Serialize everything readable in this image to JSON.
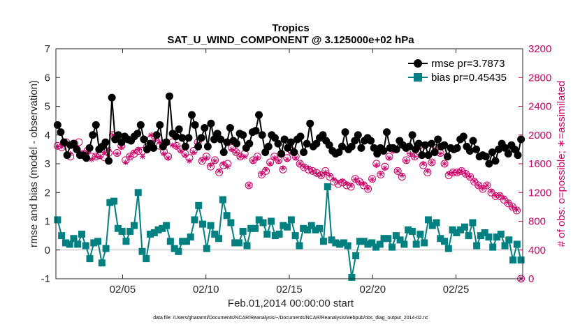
{
  "chart_data": {
    "type": "line",
    "title": "Tropics",
    "subtitle": "SAT_U_WIND_COMPONENT @ 3.125000e+02 hPa",
    "xlabel": "Feb.01,2014 00:00:00 start",
    "ylabel": "rmse and bias (model - observation)",
    "ylabel_right": "# of obs: o=possible; ∗=assimilated",
    "footnote": "data file: /Users/gharamti/Documents/NCAR/Reanalysis/~/Documents/NCAR/Reanalysis/webpub/obs_diag_output_2014-02.nc",
    "xlim": [
      1,
      29
    ],
    "ylim": [
      -1,
      7
    ],
    "ylim_right": [
      0,
      3200
    ],
    "x_ticks": [
      5,
      10,
      15,
      20,
      25
    ],
    "x_tick_labels": [
      "02/05",
      "02/10",
      "02/15",
      "02/20",
      "02/25"
    ],
    "y_ticks": [
      -1,
      0,
      1,
      2,
      3,
      4,
      5,
      6,
      7
    ],
    "y_tick_labels": [
      "-1",
      "0",
      "1",
      "2",
      "3",
      "4",
      "5",
      "6",
      "7"
    ],
    "y_right_ticks": [
      0,
      400,
      800,
      1200,
      1600,
      2000,
      2400,
      2800,
      3200
    ],
    "y_right_tick_labels": [
      "0",
      "400",
      "800",
      "1200",
      "1600",
      "2000",
      "2400",
      "2800",
      "3200"
    ],
    "legend": [
      {
        "name": "rmse",
        "label": "rmse pr=3.7873",
        "color": "#000000"
      },
      {
        "name": "bias",
        "label": "bias pr=0.45435",
        "color": "#008080"
      }
    ],
    "colors": {
      "rmse": "#000000",
      "bias": "#008080",
      "obs": "#cc0066",
      "zero_line": "#bbbbbb"
    },
    "series": [
      {
        "name": "rmse",
        "values": [
          4.35,
          4.1,
          3.75,
          3.3,
          3.65,
          3.7,
          3.5,
          3.3,
          3.3,
          3.2,
          3.55,
          4.0,
          4.35,
          3.5,
          3.6,
          3.75,
          3.1,
          5.3,
          3.85,
          4.0,
          3.75,
          3.95,
          3.85,
          3.8,
          3.95,
          4.05,
          4.35,
          3.85,
          3.5,
          3.7,
          3.55,
          4.0,
          4.35,
          3.6,
          3.75,
          5.35,
          4.05,
          3.95,
          4.2,
          3.9,
          3.6,
          3.9,
          4.7,
          4.35,
          3.6,
          3.9,
          4.25,
          3.6,
          4.4,
          3.85,
          4.05,
          3.85,
          3.4,
          3.75,
          4.25,
          3.8,
          3.7,
          4.05,
          4.0,
          3.55,
          3.7,
          4.1,
          4.15,
          4.7,
          4.0,
          3.4,
          3.6,
          4.0,
          3.9,
          3.7,
          3.35,
          3.85,
          3.55,
          3.75,
          3.4,
          3.85,
          3.95,
          3.4,
          3.7,
          4.4,
          3.6,
          3.7,
          3.9,
          4.0,
          3.8,
          3.65,
          3.45,
          3.35,
          3.4,
          3.6,
          4.1,
          3.5,
          3.6,
          3.8,
          4.0,
          3.55,
          3.8,
          3.9,
          3.8,
          3.55,
          3.35,
          3.55,
          3.45,
          4.1,
          3.55,
          3.55,
          3.5,
          3.8,
          3.65,
          3.55,
          3.6,
          4.0,
          3.5,
          3.7,
          3.3,
          3.65,
          3.3,
          3.7,
          3.4,
          3.85,
          3.6,
          3.65,
          3.25,
          3.55,
          3.5,
          3.55,
          3.85,
          3.95,
          3.6,
          3.45,
          3.8,
          3.5,
          3.25,
          3.3,
          3.25,
          3.0,
          3.4,
          3.1,
          3.5,
          3.7,
          3.55,
          3.35,
          3.65,
          3.5,
          3.3,
          3.85
        ]
      },
      {
        "name": "bias",
        "values": [
          1.05,
          0.5,
          0.25,
          0.2,
          0.4,
          0.2,
          0.55,
          0.15,
          -0.3,
          0.25,
          0.3,
          -0.45,
          0.05,
          1.65,
          1.7,
          0.75,
          0.65,
          0.3,
          0.65,
          0.85,
          2.0,
          -0.05,
          -0.3,
          0.55,
          0.6,
          0.7,
          0.75,
          0.85,
          0.3,
          0.05,
          -0.05,
          0.3,
          0.3,
          0.45,
          1.05,
          1.55,
          0.9,
          0.05,
          0.85,
          0.55,
          0.4,
          1.75,
          1.2,
          0.95,
          0.25,
          0.25,
          0.65,
          0.15,
          0.75,
          0.75,
          1.05,
          0.95,
          0.55,
          1.0,
          0.5,
          0.55,
          0.85,
          0.8,
          1.05,
          0.5,
          0.15,
          0.75,
          0.7,
          0.85,
          0.7,
          0.75,
          0.3,
          2.2,
          0.35,
          0.25,
          0.2,
          0.25,
          0.15,
          -0.95,
          -0.2,
          0.3,
          0.3,
          0.2,
          0.25,
          0.1,
          0.2,
          0.4,
          0.4,
          0.1,
          0.5,
          0.35,
          0.2,
          0.7,
          0.65,
          0.2,
          0.55,
          0.25,
          1.05,
          0.85,
          0.95,
          0.4,
          0.3,
          0.05,
          0.7,
          0.6,
          0.7,
          0.8,
          0.5,
          0.95,
          0.15,
          0.5,
          0.6,
          0.45,
          0.1,
          0.45,
          0.55,
          0.15,
          0.35,
          -0.35,
          0.2,
          -0.35
        ]
      },
      {
        "name": "obs_possible",
        "axis": "right",
        "values": [
          1850,
          1830,
          1900,
          1700,
          1880,
          1900,
          1740,
          1780,
          1700,
          1700,
          1720,
          1690,
          1750,
          2000,
          1750,
          1850,
          1650,
          1700,
          1740,
          1780,
          1780,
          1830,
          1950,
          1960,
          1850,
          1770,
          1700,
          1900,
          1850,
          1800,
          1740,
          1680,
          1780,
          1900,
          1640,
          1700,
          1560,
          1650,
          1480,
          1580,
          1600,
          1820,
          1760,
          1700,
          1740,
          1300,
          1650,
          1700,
          1450,
          1500,
          1620,
          1700,
          1650,
          1520,
          1680,
          1780,
          1700,
          1600,
          1550,
          1520,
          1500,
          1470,
          1440,
          1500,
          1420,
          1350,
          1320,
          1340,
          1300,
          1280,
          1390,
          1350,
          1300,
          1250,
          1390,
          1600,
          1450,
          1560,
          1700,
          1800,
          1500,
          1420,
          1650,
          1750,
          1700,
          1850,
          1580,
          1480,
          1620,
          1820,
          1750,
          1600,
          1440,
          1480,
          1480,
          1500,
          1460,
          1420,
          1350,
          1300,
          1250,
          1300,
          1200,
          1150,
          1150,
          1100,
          1050,
          1000,
          950,
          0
        ]
      },
      {
        "name": "obs_assimilated",
        "axis": "right",
        "values": [
          1840,
          1840,
          1880,
          1740,
          1840,
          1780,
          1700,
          1760,
          1660,
          1700,
          1700,
          1760,
          1800,
          2000,
          1740,
          1830,
          1620,
          1700,
          1760,
          1800,
          1700,
          1780,
          2000,
          1950,
          1900,
          1740,
          1680,
          1860,
          1840,
          1780,
          1720,
          1640,
          1760,
          1880,
          1650,
          1680,
          1580,
          1640,
          1500,
          1600,
          1560,
          1800,
          1760,
          1700,
          1700,
          1300,
          1640,
          1680,
          1460,
          1520,
          1600,
          1680,
          1640,
          1540,
          1660,
          1760,
          1680,
          1600,
          1560,
          1540,
          1500,
          1460,
          1440,
          1480,
          1440,
          1380,
          1340,
          1360,
          1320,
          1300,
          1380,
          1340,
          1320,
          1260,
          1380,
          1580,
          1460,
          1540,
          1680,
          1780,
          1500,
          1440,
          1640,
          1740,
          1700,
          1820,
          1600,
          1500,
          1620,
          1800,
          1740,
          1600,
          1460,
          1480,
          1480,
          1500,
          1460,
          1420,
          1360,
          1300,
          1260,
          1300,
          1220,
          1160,
          1160,
          1120,
          1060,
          1000,
          960,
          0
        ]
      }
    ]
  }
}
